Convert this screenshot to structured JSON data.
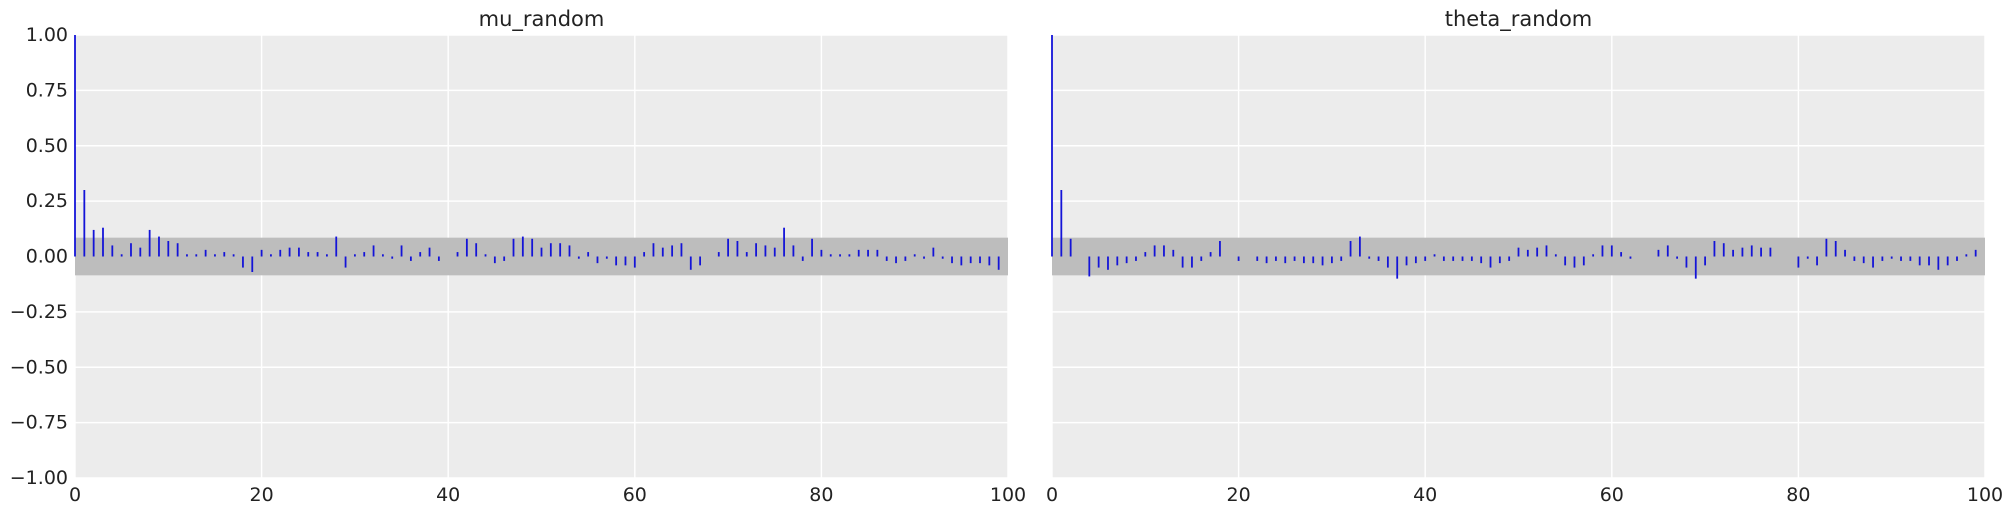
{
  "chart_data": [
    {
      "type": "bar",
      "title": "mu_random",
      "xlabel": "",
      "ylabel": "",
      "xlim": [
        0,
        100
      ],
      "ylim": [
        -1.0,
        1.0
      ],
      "x_ticks": [
        0,
        20,
        40,
        60,
        80,
        100
      ],
      "x_tick_labels": [
        "0",
        "20",
        "40",
        "60",
        "80",
        "100"
      ],
      "y_ticks": [
        1.0,
        0.75,
        0.5,
        0.25,
        0.0,
        -0.25,
        -0.5,
        -0.75,
        -1.0
      ],
      "y_tick_labels": [
        "1.00",
        "0.75",
        "0.50",
        "0.25",
        "0.00",
        "−0.25",
        "−0.50",
        "−0.75",
        "−1.00"
      ],
      "grid": true,
      "band": [
        -0.085,
        0.085
      ],
      "lags": [
        0,
        1,
        2,
        3,
        4,
        5,
        6,
        7,
        8,
        9,
        10,
        11,
        12,
        13,
        14,
        15,
        16,
        17,
        18,
        19,
        20,
        21,
        22,
        23,
        24,
        25,
        26,
        27,
        28,
        29,
        30,
        31,
        32,
        33,
        34,
        35,
        36,
        37,
        38,
        39,
        40,
        41,
        42,
        43,
        44,
        45,
        46,
        47,
        48,
        49,
        50,
        51,
        52,
        53,
        54,
        55,
        56,
        57,
        58,
        59,
        60,
        61,
        62,
        63,
        64,
        65,
        66,
        67,
        68,
        69,
        70,
        71,
        72,
        73,
        74,
        75,
        76,
        77,
        78,
        79,
        80,
        81,
        82,
        83,
        84,
        85,
        86,
        87,
        88,
        89,
        90,
        91,
        92,
        93,
        94,
        95,
        96,
        97,
        98,
        99
      ],
      "values": [
        1.0,
        0.3,
        0.12,
        0.13,
        0.05,
        0.01,
        0.06,
        0.04,
        0.12,
        0.09,
        0.07,
        0.06,
        0.01,
        0.01,
        0.03,
        0.01,
        0.02,
        0.01,
        -0.05,
        -0.07,
        0.03,
        0.01,
        0.03,
        0.04,
        0.04,
        0.02,
        0.02,
        0.01,
        0.09,
        -0.05,
        0.01,
        0.02,
        0.05,
        0.01,
        -0.01,
        0.05,
        -0.02,
        0.02,
        0.04,
        -0.02,
        0.0,
        0.02,
        0.08,
        0.06,
        0.01,
        -0.03,
        -0.02,
        0.08,
        0.09,
        0.08,
        0.04,
        0.06,
        0.06,
        0.05,
        -0.01,
        0.02,
        -0.03,
        -0.01,
        -0.04,
        -0.04,
        -0.05,
        0.02,
        0.06,
        0.04,
        0.05,
        0.06,
        -0.06,
        -0.04,
        0.0,
        0.02,
        0.08,
        0.07,
        0.02,
        0.06,
        0.05,
        0.04,
        0.13,
        0.05,
        -0.02,
        0.08,
        0.03,
        0.01,
        0.01,
        0.01,
        0.03,
        0.03,
        0.03,
        -0.02,
        -0.03,
        -0.02,
        0.01,
        -0.01,
        0.04,
        -0.01,
        -0.03,
        -0.04,
        -0.03,
        -0.03,
        -0.04,
        -0.06
      ]
    },
    {
      "type": "bar",
      "title": "theta_random",
      "xlabel": "",
      "ylabel": "",
      "xlim": [
        0,
        100
      ],
      "ylim": [
        -1.0,
        1.0
      ],
      "x_ticks": [
        0,
        20,
        40,
        60,
        80,
        100
      ],
      "x_tick_labels": [
        "0",
        "20",
        "40",
        "60",
        "80",
        "100"
      ],
      "grid": true,
      "band": [
        -0.085,
        0.085
      ],
      "lags": [
        0,
        1,
        2,
        3,
        4,
        5,
        6,
        7,
        8,
        9,
        10,
        11,
        12,
        13,
        14,
        15,
        16,
        17,
        18,
        19,
        20,
        21,
        22,
        23,
        24,
        25,
        26,
        27,
        28,
        29,
        30,
        31,
        32,
        33,
        34,
        35,
        36,
        37,
        38,
        39,
        40,
        41,
        42,
        43,
        44,
        45,
        46,
        47,
        48,
        49,
        50,
        51,
        52,
        53,
        54,
        55,
        56,
        57,
        58,
        59,
        60,
        61,
        62,
        63,
        64,
        65,
        66,
        67,
        68,
        69,
        70,
        71,
        72,
        73,
        74,
        75,
        76,
        77,
        78,
        79,
        80,
        81,
        82,
        83,
        84,
        85,
        86,
        87,
        88,
        89,
        90,
        91,
        92,
        93,
        94,
        95,
        96,
        97,
        98,
        99
      ],
      "values": [
        1.0,
        0.3,
        0.08,
        0.0,
        -0.09,
        -0.05,
        -0.06,
        -0.04,
        -0.03,
        -0.02,
        0.02,
        0.05,
        0.05,
        0.03,
        -0.05,
        -0.05,
        -0.02,
        0.02,
        0.07,
        0.0,
        -0.02,
        0.0,
        -0.02,
        -0.03,
        -0.02,
        -0.03,
        -0.02,
        -0.03,
        -0.03,
        -0.04,
        -0.03,
        -0.02,
        0.07,
        0.09,
        -0.01,
        -0.02,
        -0.05,
        -0.1,
        -0.04,
        -0.03,
        -0.02,
        0.01,
        -0.02,
        -0.02,
        -0.02,
        -0.02,
        -0.03,
        -0.05,
        -0.03,
        -0.02,
        0.04,
        0.03,
        0.04,
        0.05,
        0.01,
        -0.04,
        -0.05,
        -0.04,
        0.01,
        0.05,
        0.05,
        0.02,
        -0.01,
        0.0,
        0.0,
        0.03,
        0.05,
        -0.01,
        -0.05,
        -0.1,
        -0.04,
        0.07,
        0.06,
        0.03,
        0.04,
        0.05,
        0.04,
        0.04,
        0.0,
        0.0,
        -0.05,
        -0.01,
        -0.04,
        0.08,
        0.07,
        0.03,
        -0.02,
        -0.03,
        -0.05,
        -0.02,
        -0.01,
        -0.02,
        -0.02,
        -0.04,
        -0.04,
        -0.06,
        -0.04,
        -0.02,
        0.01,
        0.03
      ]
    }
  ],
  "colors": {
    "background": "#ffffff",
    "panel": "#ececec",
    "grid": "#ffffff",
    "band": "#bdbdbd",
    "line": "#1414d8",
    "text": "#222222"
  }
}
